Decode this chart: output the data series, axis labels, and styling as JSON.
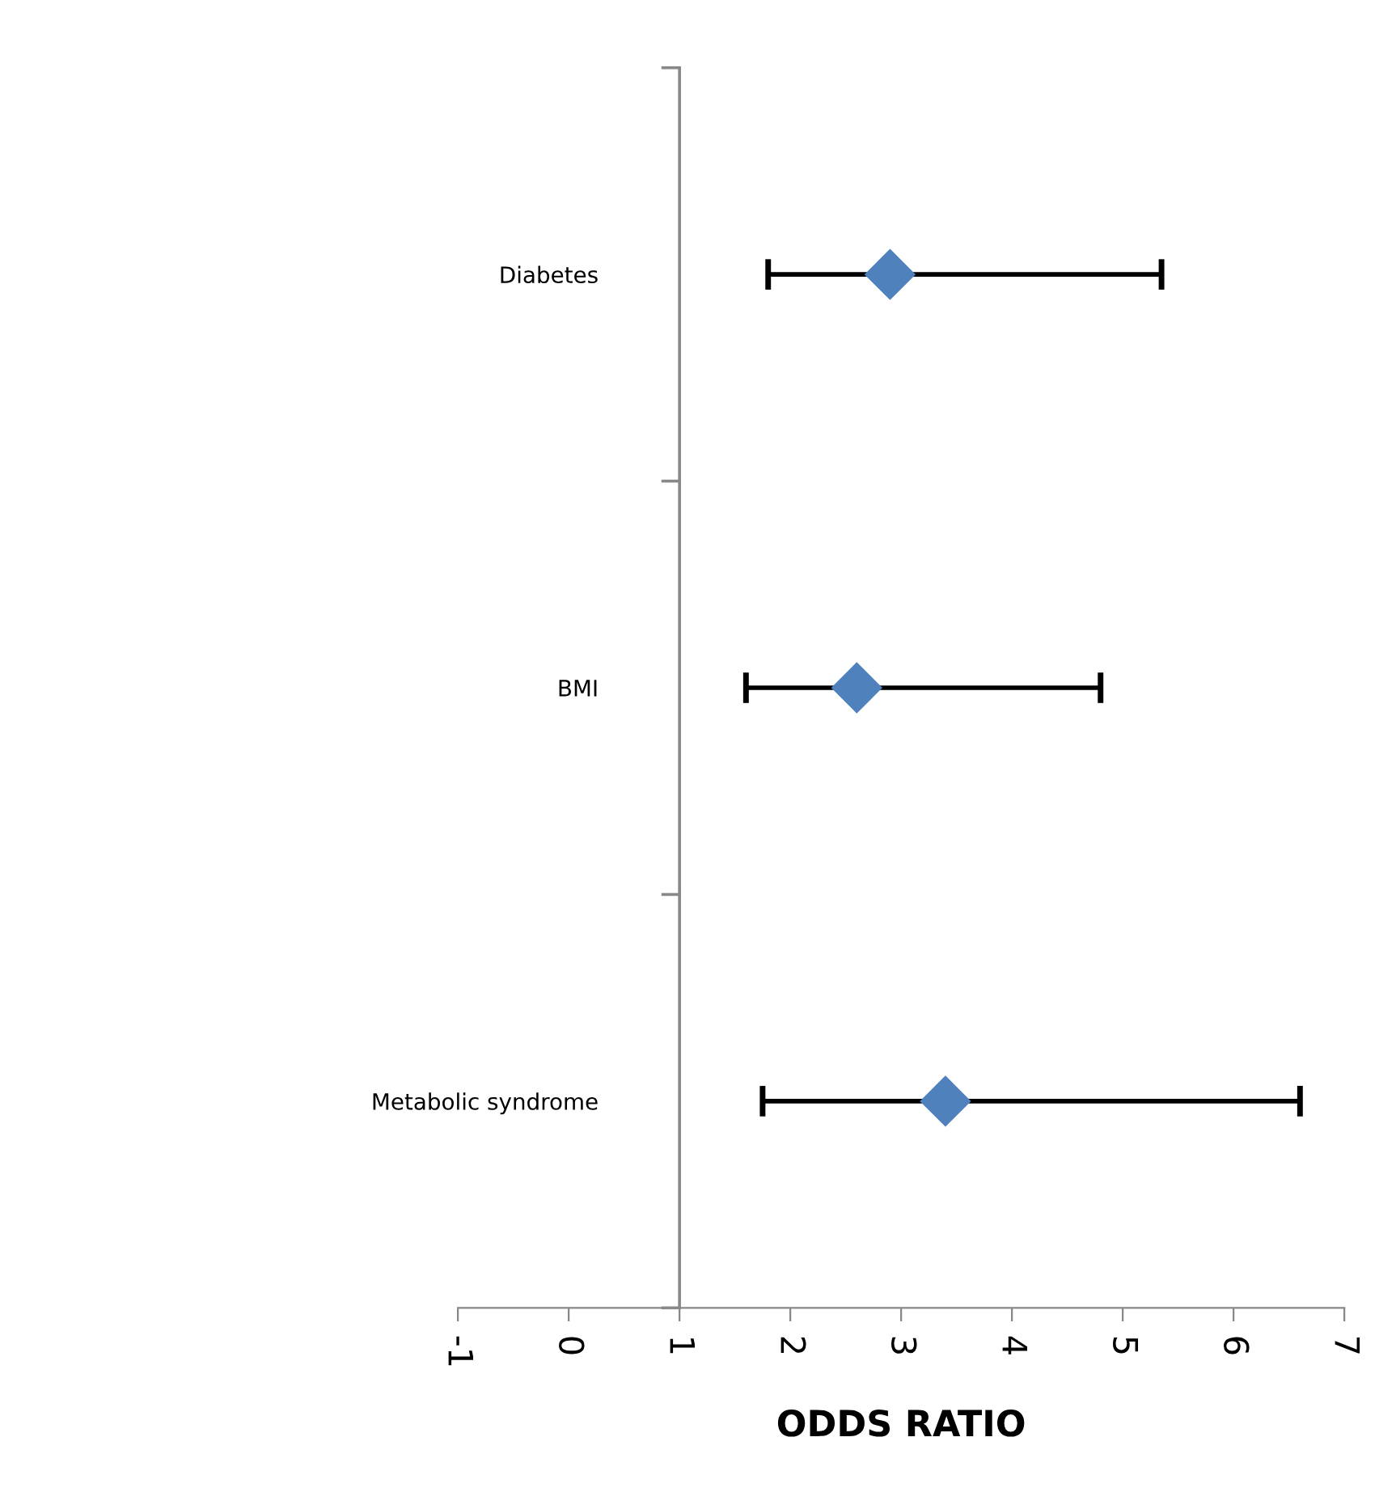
{
  "chart_data": {
    "type": "scatter",
    "orientation": "horizontal",
    "xlabel": "ODDS RATIO",
    "categories": [
      "Diabetes",
      "BMI",
      "Metabolic syndrome"
    ],
    "series": [
      {
        "color": "#4f81bd",
        "values": [
          2.9,
          2.6,
          3.4
        ],
        "errors": [
          [
            1.8,
            5.35
          ],
          [
            1.6,
            4.8
          ],
          [
            1.75,
            6.6
          ]
        ]
      }
    ],
    "xlim": [
      -1,
      7
    ],
    "xticks": [
      -1,
      0,
      1,
      2,
      3,
      4,
      5,
      6,
      7
    ],
    "ref_lines": [
      {
        "axis": "x",
        "value": 1,
        "color": "#888888"
      }
    ],
    "marker": "diamond",
    "grid": false,
    "legend": false
  }
}
